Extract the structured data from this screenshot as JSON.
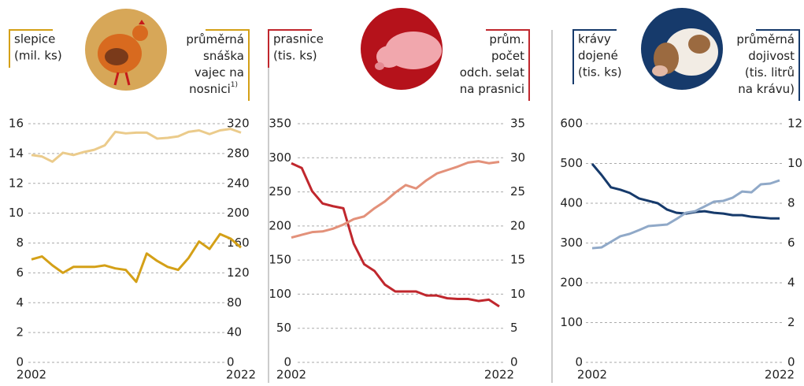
{
  "chart_data": [
    {
      "type": "line",
      "y_label": [
        "slepice",
        "(mil. ks)"
      ],
      "y2_label": [
        "průměrná",
        "snáška",
        "vajec na",
        "nosnici"
      ],
      "y2_label_note": "1)",
      "x": [
        2002,
        2003,
        2004,
        2005,
        2006,
        2007,
        2008,
        2009,
        2010,
        2011,
        2012,
        2013,
        2014,
        2015,
        2016,
        2017,
        2018,
        2019,
        2020,
        2021,
        2022
      ],
      "xlim": [
        2002,
        2022
      ],
      "xticks": [
        2002,
        2022
      ],
      "ylim": [
        0,
        16
      ],
      "yticks": [
        0,
        2,
        4,
        6,
        8,
        10,
        12,
        14,
        16
      ],
      "y2lim": [
        0,
        320
      ],
      "y2ticks": [
        0,
        40,
        80,
        120,
        160,
        200,
        240,
        280,
        320
      ],
      "grid": true,
      "label_color": "#d4a017",
      "series": [
        {
          "color": "#d4a017",
          "values": [
            6.9,
            7.1,
            6.5,
            6.0,
            6.4,
            6.4,
            6.4,
            6.5,
            6.3,
            6.2,
            5.4,
            7.3,
            6.8,
            6.4,
            6.2,
            7.0,
            8.1,
            7.6,
            8.6,
            8.3,
            7.7
          ]
        },
        {
          "color": "#ebcb8b",
          "axis": "y2",
          "values": [
            278,
            276,
            269,
            281,
            278,
            282,
            285,
            291,
            309,
            307,
            308,
            308,
            300,
            301,
            303,
            309,
            311,
            306,
            311,
            313,
            308
          ]
        }
      ]
    },
    {
      "type": "line",
      "y_label": [
        "prasnice",
        "(tis. ks)"
      ],
      "y2_label": [
        "prům.",
        "počet",
        "odch. selat",
        "na prasnici"
      ],
      "x": [
        2002,
        2003,
        2004,
        2005,
        2006,
        2007,
        2008,
        2009,
        2010,
        2011,
        2012,
        2013,
        2014,
        2015,
        2016,
        2017,
        2018,
        2019,
        2020,
        2021,
        2022
      ],
      "xlim": [
        2002,
        2022
      ],
      "xticks": [
        2002,
        2022
      ],
      "ylim": [
        0,
        350
      ],
      "yticks": [
        0,
        50,
        100,
        150,
        200,
        250,
        300,
        350
      ],
      "y2lim": [
        0,
        35
      ],
      "y2ticks": [
        0,
        5,
        10,
        15,
        20,
        25,
        30,
        35
      ],
      "grid": true,
      "label_color": "#c0272d",
      "series": [
        {
          "color": "#c0272d",
          "values": [
            292,
            285,
            251,
            233,
            229,
            226,
            174,
            144,
            134,
            114,
            104,
            104,
            104,
            98,
            98,
            94,
            93,
            93,
            90,
            92,
            82
          ]
        },
        {
          "color": "#e3917a",
          "axis": "y2",
          "values": [
            18.3,
            18.7,
            19.1,
            19.2,
            19.6,
            20.2,
            21.0,
            21.4,
            22.6,
            23.6,
            24.9,
            26.0,
            25.5,
            26.7,
            27.7,
            28.2,
            28.7,
            29.3,
            29.5,
            29.2,
            29.4
          ]
        }
      ]
    },
    {
      "type": "line",
      "y_label": [
        "krávy",
        "dojené",
        "(tis. ks)"
      ],
      "y2_label": [
        "průměrná",
        "dojivost",
        "(tis. litrů",
        "na krávu)"
      ],
      "x": [
        2002,
        2003,
        2004,
        2005,
        2006,
        2007,
        2008,
        2009,
        2010,
        2011,
        2012,
        2013,
        2014,
        2015,
        2016,
        2017,
        2018,
        2019,
        2020,
        2021,
        2022
      ],
      "xlim": [
        2002,
        2022
      ],
      "xticks": [
        2002,
        2022
      ],
      "ylim": [
        0,
        600
      ],
      "yticks": [
        0,
        100,
        200,
        300,
        400,
        500,
        600
      ],
      "y2lim": [
        0,
        12
      ],
      "y2ticks": [
        0,
        2,
        4,
        6,
        8,
        10,
        12
      ],
      "grid": true,
      "label_color": "#163a6b",
      "series": [
        {
          "color": "#163a6b",
          "values": [
            499,
            471,
            440,
            434,
            426,
            412,
            406,
            400,
            384,
            376,
            374,
            378,
            380,
            376,
            374,
            370,
            370,
            366,
            364,
            362,
            362
          ]
        },
        {
          "color": "#90a9c8",
          "axis": "y2",
          "values": [
            5.74,
            5.78,
            6.06,
            6.34,
            6.46,
            6.65,
            6.85,
            6.89,
            6.93,
            7.21,
            7.52,
            7.6,
            7.84,
            8.08,
            8.12,
            8.28,
            8.59,
            8.55,
            8.95,
            8.99,
            9.15
          ]
        }
      ]
    }
  ]
}
